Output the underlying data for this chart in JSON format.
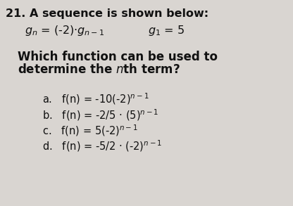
{
  "background_color": "#ccc9c5",
  "text_color": "#111111",
  "line1": "21. A sequence is shown below:",
  "line2_left": "$g_n$ = (-2)·$g_{n-1}$",
  "line2_right": "$g_1$ = 5",
  "q_line1": "Which function can be used to",
  "q_line2": "determine the $n$th term?",
  "opt_a": "a.   f(n) = -10(-2)$^{n-1}$",
  "opt_b": "b.   f(n) = -2/5 · (5)$^{n-1}$",
  "opt_c": "c.   f(n) = 5(-2)$^{n-1}$",
  "opt_d": "d.   f(n) = -5/2 · (-2)$^{n-1}$",
  "fs_title": 11.5,
  "fs_seq": 11.5,
  "fs_question": 12.0,
  "fs_options": 10.5
}
